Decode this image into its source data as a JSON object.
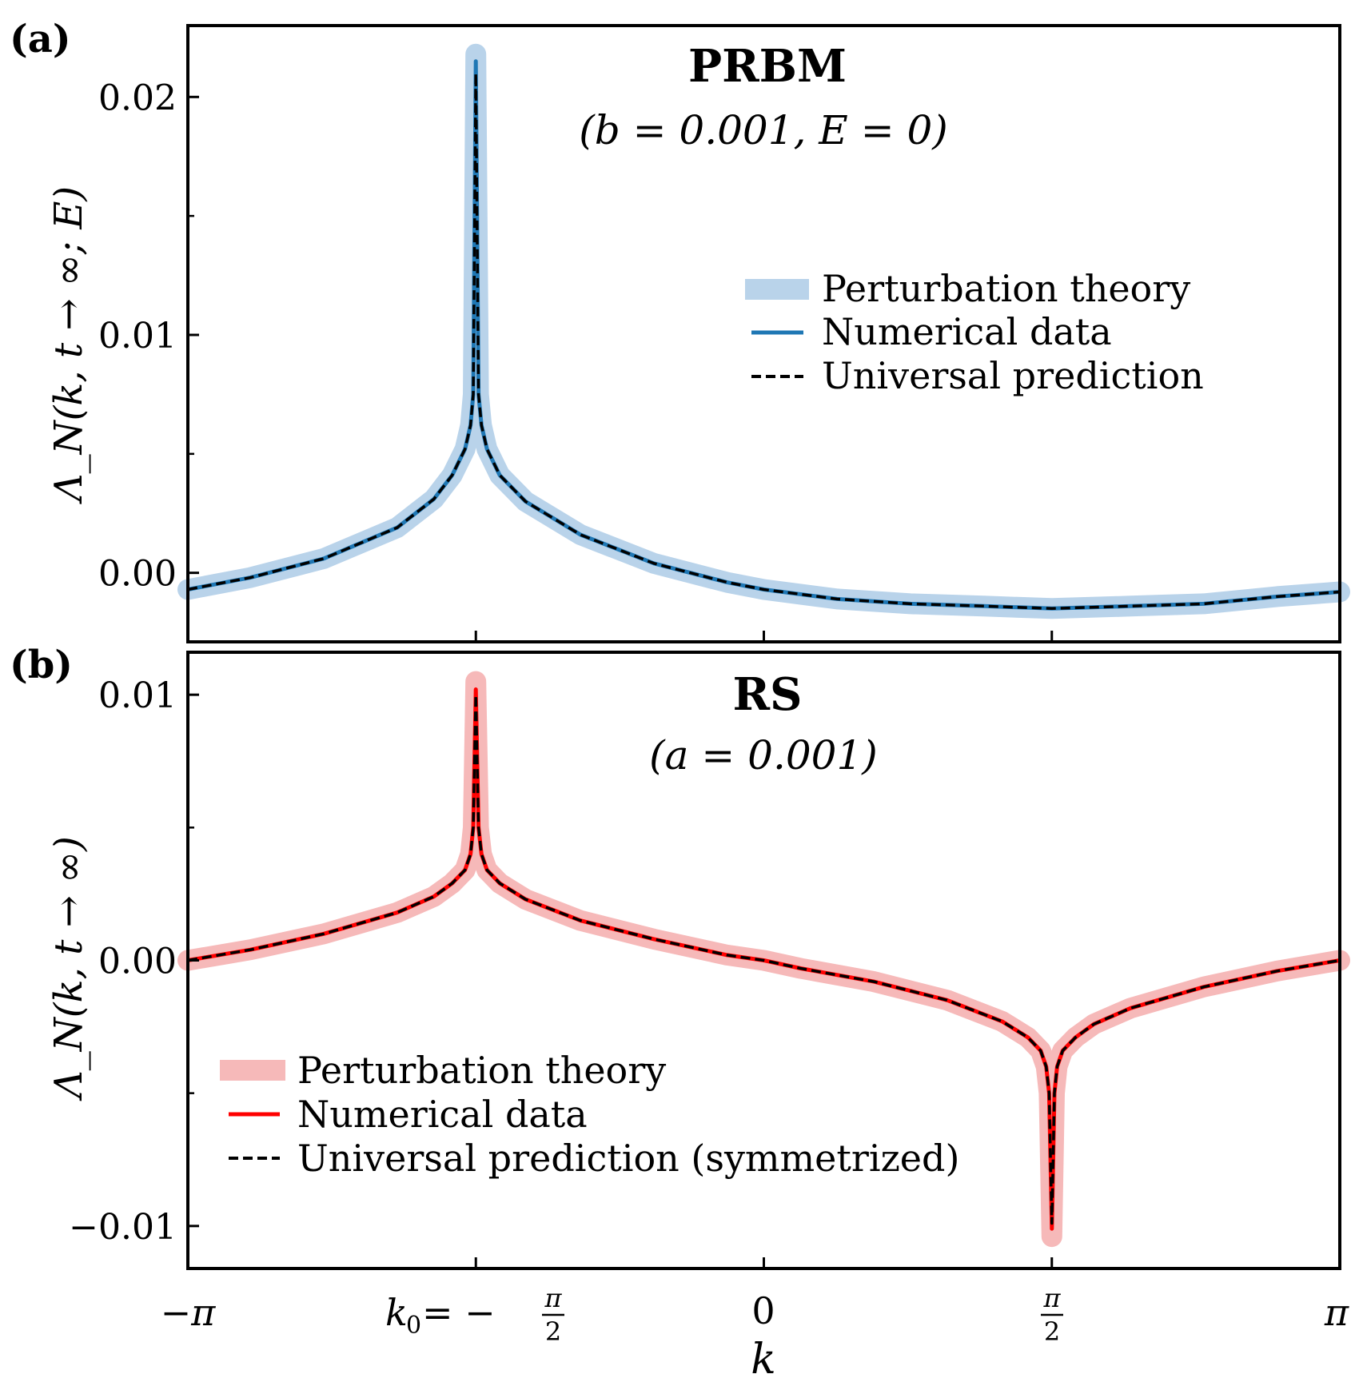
{
  "chart_data": [
    {
      "type": "line",
      "panel_label": "(a)",
      "title": "PRBM",
      "subtitle": "(b = 0.001, E = 0)",
      "xlabel": "k",
      "ylabel": "Λ_N(k, t → ∞; E)",
      "xlim": [
        -3.14159,
        3.14159
      ],
      "ylim": [
        -0.0029,
        0.023
      ],
      "yticks": [
        0.0,
        0.01,
        0.02
      ],
      "ytick_labels": [
        "0.00",
        "0.01",
        "0.02"
      ],
      "yminor_ticks": [
        0.005,
        0.015
      ],
      "xticks": [
        -3.14159,
        -1.5708,
        0,
        1.5708,
        3.14159
      ],
      "legend_position": "right",
      "legend": [
        {
          "label": "Perturbation theory",
          "style": "band",
          "color": "#b9d3ea"
        },
        {
          "label": "Numerical data",
          "style": "solid",
          "color": "#1f77b4"
        },
        {
          "label": "Universal prediction",
          "style": "dashed",
          "color": "#000000"
        }
      ],
      "series": [
        {
          "name": "Perturbation theory",
          "x": [
            -3.1416,
            -2.8,
            -2.4,
            -2.0,
            -1.8,
            -1.7,
            -1.63,
            -1.6,
            -1.585,
            -1.5708,
            -1.556,
            -1.54,
            -1.51,
            -1.44,
            -1.3,
            -1.0,
            -0.6,
            -0.2,
            0,
            0.4,
            0.8,
            1.2,
            1.5708,
            2.0,
            2.4,
            2.8,
            3.1416
          ],
          "values": [
            -0.0007,
            -0.0002,
            0.0006,
            0.0019,
            0.0031,
            0.0041,
            0.0052,
            0.0062,
            0.0075,
            0.0218,
            0.0075,
            0.0062,
            0.0052,
            0.0041,
            0.003,
            0.0016,
            0.0004,
            -0.0004,
            -0.0007,
            -0.0011,
            -0.0013,
            -0.0014,
            -0.0015,
            -0.0014,
            -0.0013,
            -0.001,
            -0.0008
          ]
        },
        {
          "name": "Numerical data",
          "x": [
            -3.1416,
            -2.8,
            -2.4,
            -2.0,
            -1.8,
            -1.7,
            -1.63,
            -1.6,
            -1.585,
            -1.5708,
            -1.556,
            -1.54,
            -1.51,
            -1.44,
            -1.3,
            -1.0,
            -0.6,
            -0.2,
            0,
            0.4,
            0.8,
            1.2,
            1.5708,
            2.0,
            2.4,
            2.8,
            3.1416
          ],
          "values": [
            -0.0007,
            -0.0002,
            0.0006,
            0.0019,
            0.0031,
            0.0041,
            0.0052,
            0.0062,
            0.0075,
            0.0215,
            0.0075,
            0.0062,
            0.0052,
            0.0041,
            0.003,
            0.0016,
            0.0004,
            -0.0004,
            -0.0007,
            -0.0011,
            -0.0013,
            -0.0014,
            -0.0015,
            -0.0014,
            -0.0013,
            -0.001,
            -0.0008
          ]
        },
        {
          "name": "Universal prediction",
          "x": [
            -3.1416,
            -2.8,
            -2.4,
            -2.0,
            -1.8,
            -1.7,
            -1.63,
            -1.6,
            -1.585,
            -1.5708,
            -1.556,
            -1.54,
            -1.51,
            -1.44,
            -1.3,
            -1.0,
            -0.6,
            -0.2,
            0,
            0.4,
            0.8,
            1.2,
            1.5708,
            2.0,
            2.4,
            2.8,
            3.1416
          ],
          "values": [
            -0.0007,
            -0.0002,
            0.0006,
            0.0019,
            0.0031,
            0.0041,
            0.0052,
            0.0062,
            0.0075,
            0.021,
            0.0075,
            0.0062,
            0.0052,
            0.0041,
            0.003,
            0.0016,
            0.0004,
            -0.0004,
            -0.0007,
            -0.0011,
            -0.0013,
            -0.0014,
            -0.0015,
            -0.0014,
            -0.0013,
            -0.001,
            -0.0008
          ]
        }
      ]
    },
    {
      "type": "line",
      "panel_label": "(b)",
      "title": "RS",
      "subtitle": "(a = 0.001)",
      "xlabel": "k",
      "ylabel": "Λ_N(k, t → ∞)",
      "xlim": [
        -3.14159,
        3.14159
      ],
      "ylim": [
        -0.0116,
        0.0116
      ],
      "yticks": [
        -0.01,
        0.0,
        0.01
      ],
      "ytick_labels": [
        "−0.01",
        "0.00",
        "0.01"
      ],
      "yminor_ticks": [
        -0.005,
        0.005
      ],
      "xticks": [
        -3.14159,
        -1.5708,
        0,
        1.5708,
        3.14159
      ],
      "legend_position": "lower-left",
      "legend": [
        {
          "label": "Perturbation theory",
          "style": "band",
          "color": "#f6b9b9"
        },
        {
          "label": "Numerical data",
          "style": "solid",
          "color": "#ff0000"
        },
        {
          "label": "Universal prediction (symmetrized)",
          "style": "dashed",
          "color": "#000000"
        }
      ],
      "series": [
        {
          "name": "Perturbation theory",
          "x": [
            -3.1416,
            -2.8,
            -2.4,
            -2.0,
            -1.8,
            -1.7,
            -1.63,
            -1.6,
            -1.585,
            -1.5708,
            -1.556,
            -1.54,
            -1.51,
            -1.44,
            -1.3,
            -1.0,
            -0.6,
            -0.2,
            0,
            0.2,
            0.6,
            1.0,
            1.3,
            1.44,
            1.51,
            1.54,
            1.556,
            1.5708,
            1.585,
            1.6,
            1.63,
            1.7,
            1.8,
            2.0,
            2.4,
            2.8,
            3.1416
          ],
          "values": [
            0.0,
            0.0004,
            0.001,
            0.0018,
            0.0024,
            0.0029,
            0.0034,
            0.004,
            0.005,
            0.0105,
            0.005,
            0.004,
            0.0034,
            0.0029,
            0.0023,
            0.0015,
            0.0008,
            0.0002,
            0.0,
            -0.0003,
            -0.0008,
            -0.0015,
            -0.0023,
            -0.0029,
            -0.0034,
            -0.004,
            -0.005,
            -0.0104,
            -0.005,
            -0.004,
            -0.0034,
            -0.0029,
            -0.0024,
            -0.0018,
            -0.001,
            -0.0004,
            0.0
          ]
        },
        {
          "name": "Numerical data",
          "x": [
            -3.1416,
            -2.8,
            -2.4,
            -2.0,
            -1.8,
            -1.7,
            -1.63,
            -1.6,
            -1.585,
            -1.5708,
            -1.556,
            -1.54,
            -1.51,
            -1.44,
            -1.3,
            -1.0,
            -0.6,
            -0.2,
            0,
            0.2,
            0.6,
            1.0,
            1.3,
            1.44,
            1.51,
            1.54,
            1.556,
            1.5708,
            1.585,
            1.6,
            1.63,
            1.7,
            1.8,
            2.0,
            2.4,
            2.8,
            3.1416
          ],
          "values": [
            0.0,
            0.0004,
            0.001,
            0.0018,
            0.0024,
            0.0029,
            0.0034,
            0.004,
            0.005,
            0.0102,
            0.005,
            0.004,
            0.0034,
            0.0029,
            0.0023,
            0.0015,
            0.0008,
            0.0002,
            0.0,
            -0.0003,
            -0.0008,
            -0.0015,
            -0.0023,
            -0.0029,
            -0.0034,
            -0.004,
            -0.005,
            -0.0101,
            -0.005,
            -0.004,
            -0.0034,
            -0.0029,
            -0.0024,
            -0.0018,
            -0.001,
            -0.0004,
            0.0
          ]
        },
        {
          "name": "Universal prediction (symmetrized)",
          "x": [
            -3.1416,
            -2.8,
            -2.4,
            -2.0,
            -1.8,
            -1.7,
            -1.63,
            -1.6,
            -1.585,
            -1.5708,
            -1.556,
            -1.54,
            -1.51,
            -1.44,
            -1.3,
            -1.0,
            -0.6,
            -0.2,
            0,
            0.2,
            0.6,
            1.0,
            1.3,
            1.44,
            1.51,
            1.54,
            1.556,
            1.5708,
            1.585,
            1.6,
            1.63,
            1.7,
            1.8,
            2.0,
            2.4,
            2.8,
            3.1416
          ],
          "values": [
            0.0,
            0.0004,
            0.001,
            0.0018,
            0.0024,
            0.0029,
            0.0034,
            0.004,
            0.005,
            0.01,
            0.005,
            0.004,
            0.0034,
            0.0029,
            0.0023,
            0.0015,
            0.0008,
            0.0002,
            0.0,
            -0.0003,
            -0.0008,
            -0.0015,
            -0.0023,
            -0.0029,
            -0.0034,
            -0.004,
            -0.005,
            -0.0099,
            -0.005,
            -0.004,
            -0.0034,
            -0.0029,
            -0.0024,
            -0.0018,
            -0.001,
            -0.0004,
            0.0
          ]
        }
      ]
    }
  ],
  "x_tick_labels": {
    "neg_pi": "−π",
    "k0_lhs": "k",
    "k0_sub": "0",
    "k0_eq": " = −",
    "pi": "π",
    "two": "2",
    "zero": "0",
    "pos_pi": "π"
  }
}
